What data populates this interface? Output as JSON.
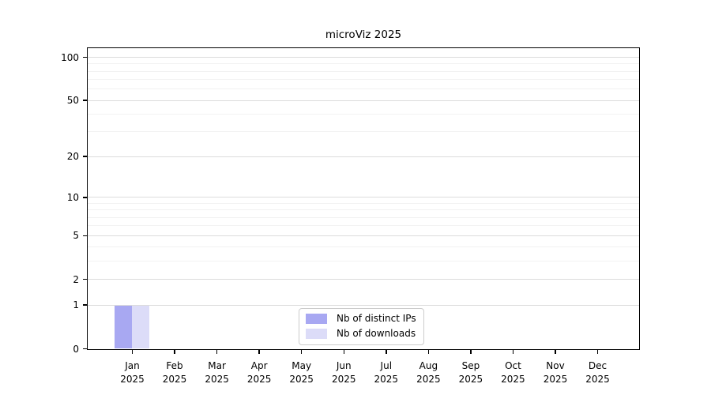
{
  "chart_data": {
    "type": "bar",
    "title": "microViz 2025",
    "categories": [
      "Jan",
      "Feb",
      "Mar",
      "Apr",
      "May",
      "Jun",
      "Jul",
      "Aug",
      "Sep",
      "Oct",
      "Nov",
      "Dec"
    ],
    "x_tick_second_line": "2025",
    "series": [
      {
        "name": "Nb of distinct IPs",
        "color": "#a8a8f2",
        "values": [
          1,
          0,
          0,
          0,
          0,
          0,
          0,
          0,
          0,
          0,
          0,
          0
        ]
      },
      {
        "name": "Nb of downloads",
        "color": "#dcdcf8",
        "values": [
          1,
          0,
          0,
          0,
          0,
          0,
          0,
          0,
          0,
          0,
          0,
          0
        ]
      }
    ],
    "xlabel": "",
    "ylabel": "",
    "yscale": "log10(1+value)",
    "ylim": [
      0,
      115
    ],
    "y_major_ticks": [
      0,
      1,
      2,
      5,
      10,
      20,
      50,
      100
    ],
    "y_minor_gridlines": [
      3,
      4,
      6,
      7,
      8,
      9,
      30,
      40,
      60,
      70,
      80,
      90
    ],
    "grid": "horizontal",
    "legend_position": "lower-center"
  },
  "colors": {
    "bar_distinct_ips": "#a8a8f2",
    "bar_downloads": "#dcdcf8",
    "grid_major": "#dcdcdc",
    "grid_minor": "#f2f2f2",
    "axis": "#000000",
    "legend_border": "#cccccc",
    "background": "#ffffff"
  }
}
